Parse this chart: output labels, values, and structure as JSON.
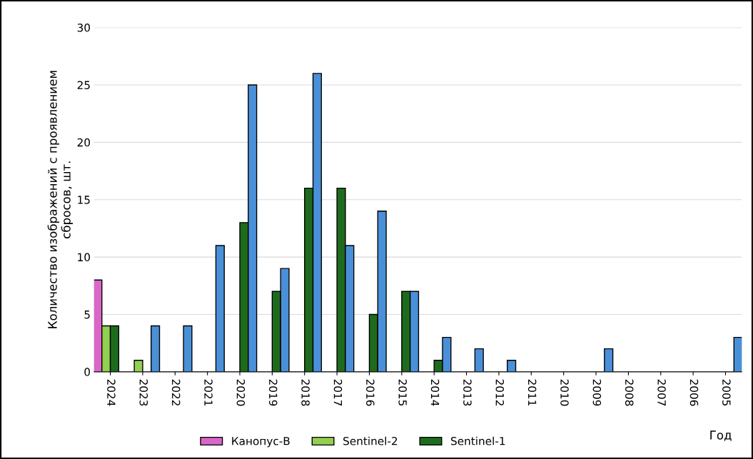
{
  "chart_data": {
    "type": "bar",
    "categories": [
      "2024",
      "2023",
      "2022",
      "2021",
      "2020",
      "2019",
      "2018",
      "2017",
      "2016",
      "2015",
      "2014",
      "2013",
      "2012",
      "2011",
      "2010",
      "2009",
      "2008",
      "2007",
      "2006",
      "2005"
    ],
    "series": [
      {
        "name": "Канопус-В",
        "color": "#d966c8",
        "values": [
          8,
          null,
          null,
          null,
          null,
          null,
          null,
          null,
          null,
          null,
          null,
          null,
          null,
          null,
          null,
          null,
          null,
          null,
          null,
          null
        ]
      },
      {
        "name": "Sentinel-2",
        "color": "#92d050",
        "values": [
          4,
          1,
          null,
          null,
          null,
          null,
          null,
          null,
          null,
          null,
          null,
          null,
          null,
          null,
          null,
          null,
          null,
          null,
          null,
          null
        ]
      },
      {
        "name": "Sentinel-1",
        "color": "#1e6b1e",
        "values": [
          4,
          null,
          null,
          null,
          13,
          7,
          16,
          16,
          5,
          7,
          1,
          null,
          null,
          null,
          null,
          null,
          null,
          null,
          null,
          null
        ]
      },
      {
        "color": "#4a90d9",
        "values": [
          null,
          4,
          4,
          11,
          25,
          9,
          26,
          11,
          14,
          7,
          3,
          2,
          1,
          null,
          null,
          2,
          null,
          null,
          null,
          3
        ]
      }
    ],
    "ylabel": "Количество изображений с проявлением\nсбросов, шт.",
    "xlabel": "Год",
    "ylim": [
      0,
      30
    ],
    "yticks": [
      0,
      5,
      10,
      15,
      20,
      25,
      30
    ],
    "grid": "y",
    "legend": "bottom"
  }
}
